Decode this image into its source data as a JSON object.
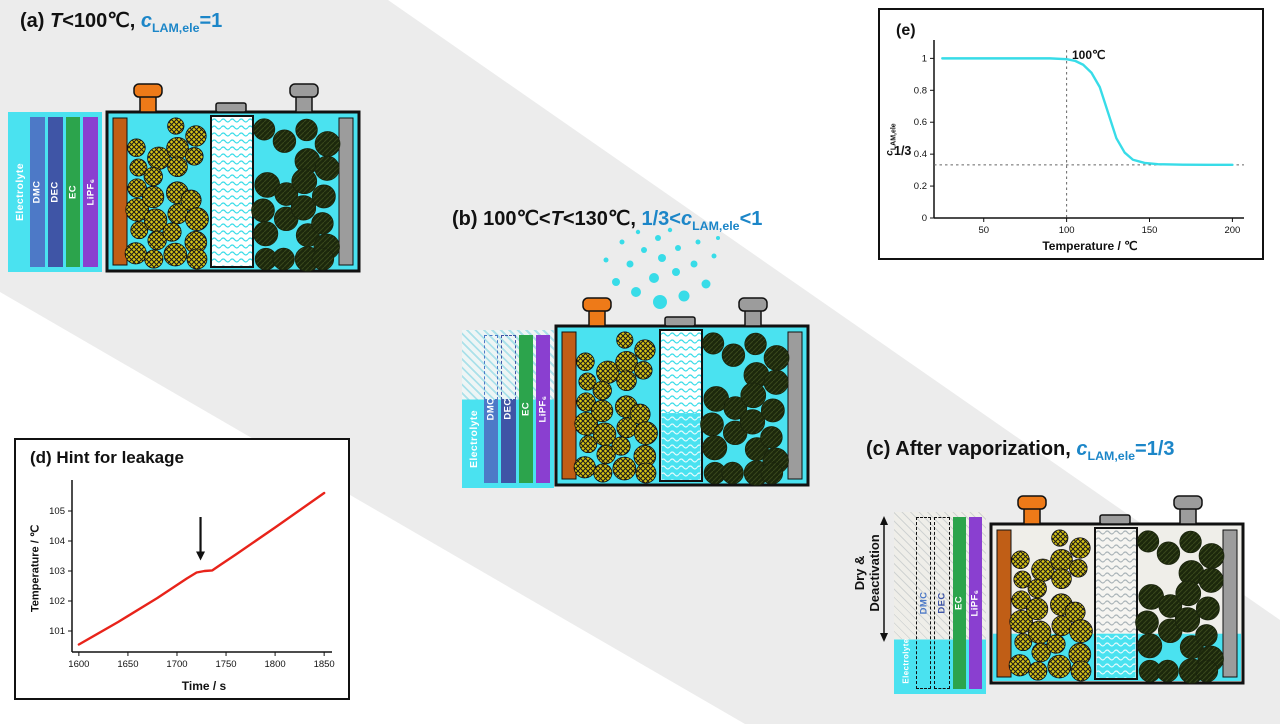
{
  "colors": {
    "accent_blue": "#1c86c8",
    "band_gray": "#ececec",
    "cyan": "#4ae2f0",
    "curve_cyan": "#38dce8",
    "line_red": "#e8231a",
    "bar_dmc": "#4d79c7",
    "bar_dec": "#3f55a6",
    "bar_ec": "#2ca44c",
    "bar_lipf6": "#8a3fd0",
    "terminal_orange": "#ee7a18",
    "collector_orange": "#c05e16",
    "metal_gray": "#9c9c9c",
    "cathode_yellow": "#d7c414",
    "anode_dark": "#1c280c",
    "dry_fill": "#efeee9"
  },
  "panels": {
    "a": {
      "label": "(a) ",
      "t_italic": "T",
      "cond": "<100℃, ",
      "c_var": "c",
      "c_sub": "LAM,ele",
      "c_eq": "=1"
    },
    "b": {
      "label": "(b) ",
      "cond1": "100℃<",
      "t_italic": "T",
      "cond2": "<130℃, ",
      "blue_pre": "1/3<",
      "c_var": "c",
      "c_sub": "LAM,ele",
      "blue_post": "<1"
    },
    "c": {
      "label": "(c) After vaporization, ",
      "c_var": "c",
      "c_sub": "LAM,ele",
      "c_eq": "=1/3",
      "dry_label_line1": "Dry &",
      "dry_label_line2": "Deactivation"
    }
  },
  "legend": {
    "electrolyte": "Electrolyte",
    "components": [
      {
        "name": "DMC",
        "color": "#4d79c7"
      },
      {
        "name": "DEC",
        "color": "#3f55a6"
      },
      {
        "name": "EC",
        "color": "#2ca44c"
      },
      {
        "name": "LiPF₆",
        "color": "#8a3fd0"
      }
    ]
  },
  "battery_states": {
    "a": {
      "electrolyte_fill": 1,
      "separator_wet": 0,
      "dry": false
    },
    "b": {
      "electrolyte_fill": 1,
      "separator_wet": 0.45,
      "dry": false
    },
    "c": {
      "electrolyte_fill": 0.31,
      "separator_wet": 0.3,
      "dry": true
    }
  },
  "chart_data": [
    {
      "id": "d",
      "type": "line",
      "title": "(d) Hint for leakage",
      "xlabel": "Time / s",
      "ylabel": "Temperature / ℃",
      "xlim": [
        1593,
        1858
      ],
      "ylim": [
        100.3,
        105.9
      ],
      "xticks": [
        1600,
        1650,
        1700,
        1750,
        1800,
        1850
      ],
      "yticks": [
        101,
        102,
        103,
        104,
        105
      ],
      "grid": false,
      "legend_position": "none",
      "series": [
        {
          "name": "temperature",
          "color": "#e8231a",
          "x": [
            1600,
            1640,
            1680,
            1710,
            1720,
            1728,
            1736,
            1744,
            1760,
            1800,
            1850
          ],
          "y": [
            100.55,
            101.3,
            102.1,
            102.75,
            102.95,
            103.0,
            103.02,
            103.2,
            103.55,
            104.45,
            105.6
          ]
        }
      ],
      "annotations": {
        "arrow": {
          "x": 1724,
          "y_start": 104.8,
          "y_end": 103.35
        }
      }
    },
    {
      "id": "e",
      "type": "line",
      "panel_label": "(e)",
      "xlabel": "Temperature / ℃",
      "ylabel_var": "c",
      "ylabel_sub": "LAM,ele",
      "xlim": [
        20,
        207
      ],
      "ylim": [
        0,
        1.09
      ],
      "xticks": [
        50,
        100,
        150,
        200
      ],
      "yticks": [
        0,
        0.2,
        0.4,
        0.6,
        0.8,
        1
      ],
      "grid": false,
      "legend_position": "none",
      "series": [
        {
          "name": "c_LAM_ele",
          "color": "#38dce8",
          "x": [
            25,
            40,
            60,
            80,
            90,
            100,
            105,
            110,
            115,
            120,
            125,
            130,
            135,
            140,
            147,
            155,
            170,
            185,
            200
          ],
          "y": [
            1,
            1,
            1,
            1,
            1,
            0.995,
            0.985,
            0.96,
            0.91,
            0.82,
            0.66,
            0.5,
            0.41,
            0.365,
            0.345,
            0.337,
            0.334,
            0.333,
            0.333
          ]
        }
      ],
      "annotations": {
        "vline": {
          "x": 100,
          "label": "100℃"
        },
        "hline": {
          "y": 0.333,
          "label": "1/3"
        }
      }
    }
  ]
}
